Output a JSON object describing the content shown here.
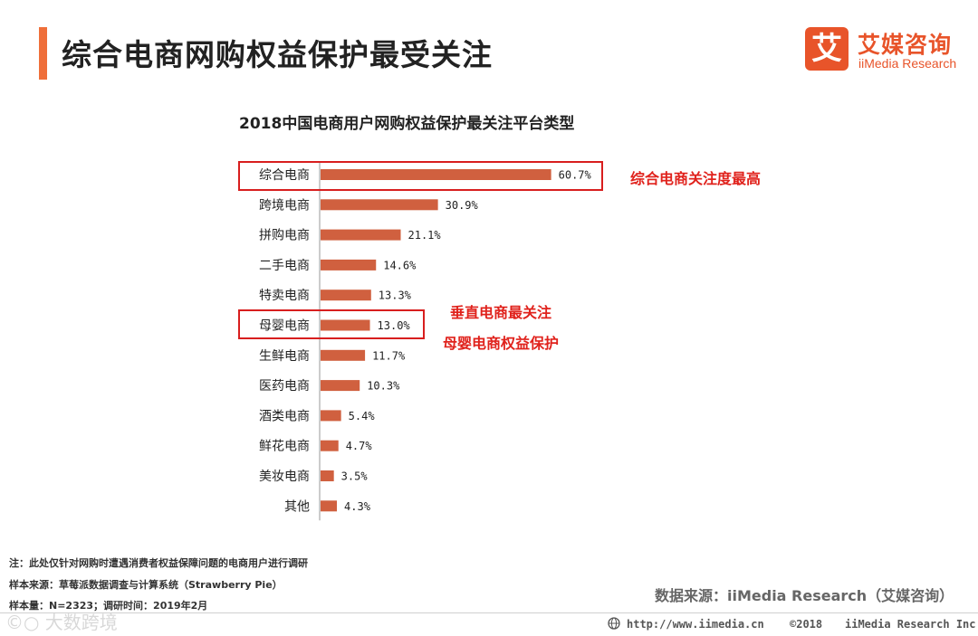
{
  "header": {
    "title": "综合电商网购权益保护最受关注",
    "logo_mark": "艾",
    "logo_cn": "艾媒咨询",
    "logo_en": "iiMedia Research"
  },
  "chart_data": {
    "type": "bar",
    "orientation": "horizontal",
    "title": "2018中国电商用户网购权益保护最关注平台类型",
    "categories": [
      "综合电商",
      "跨境电商",
      "拼购电商",
      "二手电商",
      "特卖电商",
      "母婴电商",
      "生鲜电商",
      "医药电商",
      "酒类电商",
      "鲜花电商",
      "美妆电商",
      "其他"
    ],
    "values": [
      60.7,
      30.9,
      21.1,
      14.6,
      13.3,
      13.0,
      11.7,
      10.3,
      5.4,
      4.7,
      3.5,
      4.3
    ],
    "value_labels": [
      "60.7%",
      "30.9%",
      "21.1%",
      "14.6%",
      "13.3%",
      "13.0%",
      "11.7%",
      "10.3%",
      "5.4%",
      "4.7%",
      "3.5%",
      "4.3%"
    ],
    "unit": "%",
    "bar_color": "#d0603f",
    "highlight_color": "#d81e1e",
    "highlighted": [
      "综合电商",
      "母婴电商"
    ]
  },
  "annotations": {
    "top": "综合电商关注度最高",
    "mid_line1": "垂直电商最关注",
    "mid_line2": "母婴电商权益保护"
  },
  "notes": {
    "note1": "注：此处仅针对网购时遭遇消费者权益保障问题的电商用户进行调研",
    "note2": "样本来源：草莓派数据调查与计算系统（Strawberry  Pie）",
    "note3": "样本量：N=2323；调研时间：2019年2月"
  },
  "source": "数据来源：iiMedia Research（艾媒咨询）",
  "footer": {
    "url": "http://www.iimedia.cn",
    "copyright": "©2018",
    "company": "iiMedia Research Inc"
  },
  "watermark": "©○ 大数跨境",
  "colors": {
    "accent": "#ef6f3a",
    "brand": "#e8542a",
    "annotation": "#e0221c"
  }
}
